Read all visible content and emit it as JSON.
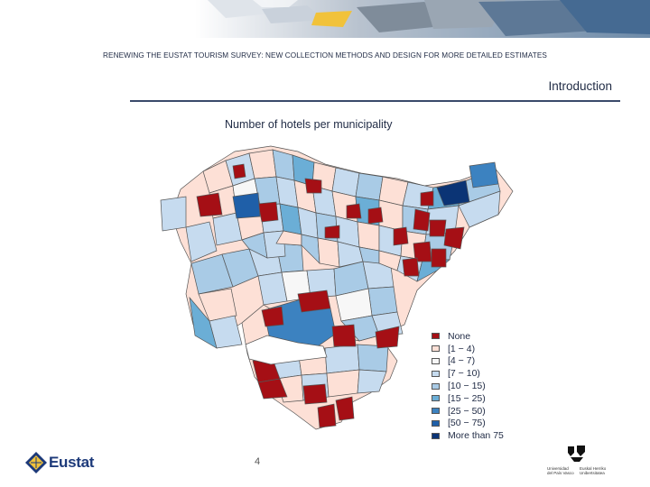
{
  "header": {
    "text": "RENEWING THE EUSTAT TOURISM SURVEY: NEW COLLECTION METHODS AND DESIGN FOR MORE DETAILED ESTIMATES",
    "section": "Introduction"
  },
  "map": {
    "title": "Number of hotels per municipality",
    "legend": [
      {
        "label": "None",
        "color": "#a50f15"
      },
      {
        "label": "[1 − 4)",
        "color": "#fde0d6"
      },
      {
        "label": "[4 − 7)",
        "color": "#f7f7f7"
      },
      {
        "label": "[7 − 10)",
        "color": "#c6dbef"
      },
      {
        "label": "[10 − 15)",
        "color": "#a9cbe6"
      },
      {
        "label": "[15 − 25)",
        "color": "#6baed6"
      },
      {
        "label": "[25 − 50)",
        "color": "#3c82c0"
      },
      {
        "label": "[50 − 75)",
        "color": "#1f5fa8"
      },
      {
        "label": "More than 75",
        "color": "#0b3475"
      }
    ]
  },
  "footer": {
    "page_number": "4",
    "logo_name": "Eustat",
    "university_line1": "Universidad",
    "university_line2": "del País Vasco",
    "university_line3": "Euskal Herriko",
    "university_line4": "Unibertsitatea"
  }
}
